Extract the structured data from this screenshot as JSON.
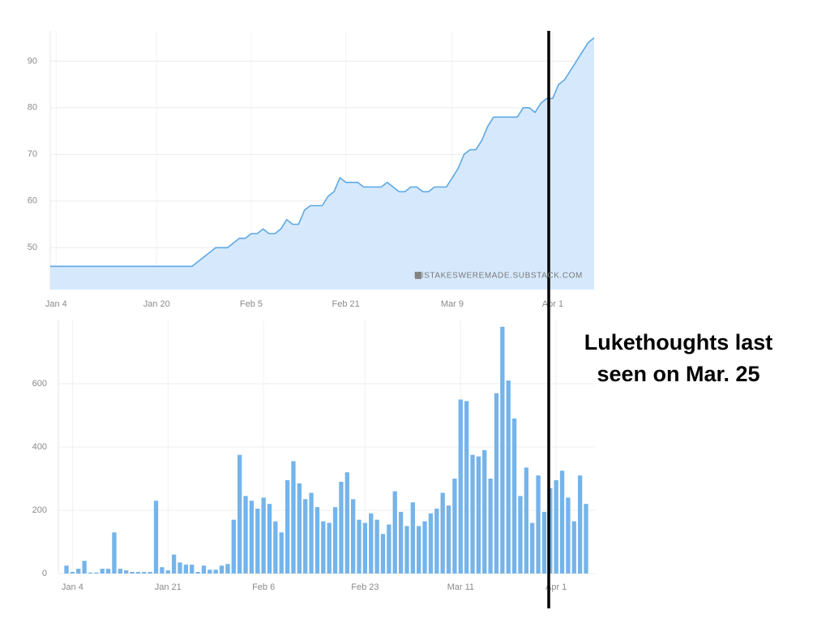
{
  "chart_data": [
    {
      "type": "area",
      "color": "#5ea8e4",
      "fill_color": "#d6e9fc",
      "grid": true,
      "watermark": "MISTAKESWEREMADE.SUBSTACK.COM",
      "annotation": {
        "lines": [
          "Lukethoughts last",
          "seen on Mar. 25"
        ]
      },
      "categories": [
        null,
        "Jan 4",
        null,
        null,
        null,
        null,
        null,
        null,
        null,
        null,
        null,
        null,
        null,
        null,
        null,
        null,
        null,
        null,
        "Jan 20",
        null,
        null,
        null,
        null,
        null,
        null,
        null,
        null,
        null,
        null,
        null,
        null,
        null,
        null,
        null,
        "Feb 5",
        null,
        null,
        null,
        null,
        null,
        null,
        null,
        null,
        null,
        null,
        null,
        null,
        null,
        null,
        null,
        "Feb 21",
        null,
        null,
        null,
        null,
        null,
        null,
        null,
        null,
        null,
        null,
        null,
        null,
        null,
        null,
        null,
        null,
        null,
        "Mar 9",
        null,
        null,
        null,
        null,
        null,
        null,
        null,
        null,
        null,
        null,
        null,
        null,
        null,
        null,
        null,
        null,
        "Apr 1",
        null,
        null,
        null,
        null,
        null,
        null,
        null
      ],
      "values": [
        46,
        46,
        46,
        46,
        46,
        46,
        46,
        46,
        46,
        46,
        46,
        46,
        46,
        46,
        46,
        46,
        46,
        46,
        46,
        46,
        46,
        46,
        46,
        46,
        46,
        47,
        48,
        49,
        50,
        50,
        50,
        51,
        52,
        52,
        53,
        53,
        54,
        53,
        53,
        54,
        56,
        55,
        55,
        58,
        59,
        59,
        59,
        61,
        62,
        65,
        64,
        64,
        64,
        63,
        63,
        63,
        63,
        64,
        63,
        62,
        62,
        63,
        63,
        62,
        62,
        63,
        63,
        63,
        65,
        67,
        70,
        71,
        71,
        73,
        76,
        78,
        78,
        78,
        78,
        78,
        80,
        80,
        79,
        81,
        82,
        82,
        85,
        86,
        88,
        90,
        92,
        94,
        95
      ],
      "ylim": [
        41,
        96.5
      ],
      "yticks": [
        50,
        60,
        70,
        80,
        90
      ]
    },
    {
      "type": "bar",
      "color": "#74b4ea",
      "grid": true,
      "categories": [
        null,
        "Jan 4",
        null,
        null,
        null,
        null,
        null,
        null,
        null,
        null,
        null,
        null,
        null,
        null,
        null,
        null,
        null,
        "Jan 21",
        null,
        null,
        null,
        null,
        null,
        null,
        null,
        null,
        null,
        null,
        null,
        null,
        null,
        null,
        null,
        "Feb 6",
        null,
        null,
        null,
        null,
        null,
        null,
        null,
        null,
        null,
        null,
        null,
        null,
        null,
        null,
        null,
        null,
        "Feb 23",
        null,
        null,
        null,
        null,
        null,
        null,
        null,
        null,
        null,
        null,
        null,
        null,
        null,
        null,
        null,
        "Mar 11",
        null,
        null,
        null,
        null,
        null,
        null,
        null,
        null,
        null,
        null,
        null,
        null,
        null,
        null,
        null,
        "Apr 1",
        null,
        null,
        null,
        null,
        null
      ],
      "values": [
        25,
        5,
        15,
        40,
        3,
        3,
        15,
        15,
        130,
        15,
        10,
        5,
        5,
        5,
        5,
        230,
        20,
        10,
        60,
        35,
        28,
        28,
        5,
        25,
        12,
        12,
        25,
        30,
        170,
        375,
        245,
        230,
        205,
        240,
        220,
        165,
        130,
        295,
        355,
        285,
        235,
        255,
        210,
        165,
        160,
        210,
        290,
        320,
        235,
        170,
        160,
        190,
        170,
        125,
        155,
        260,
        195,
        150,
        225,
        150,
        165,
        190,
        205,
        255,
        215,
        300,
        550,
        545,
        375,
        370,
        390,
        300,
        570,
        780,
        610,
        490,
        245,
        335,
        160,
        310,
        195,
        270,
        295,
        325,
        240,
        165,
        310,
        220
      ],
      "ylim": [
        0,
        800
      ],
      "yticks": [
        0,
        200,
        400,
        600
      ]
    }
  ]
}
